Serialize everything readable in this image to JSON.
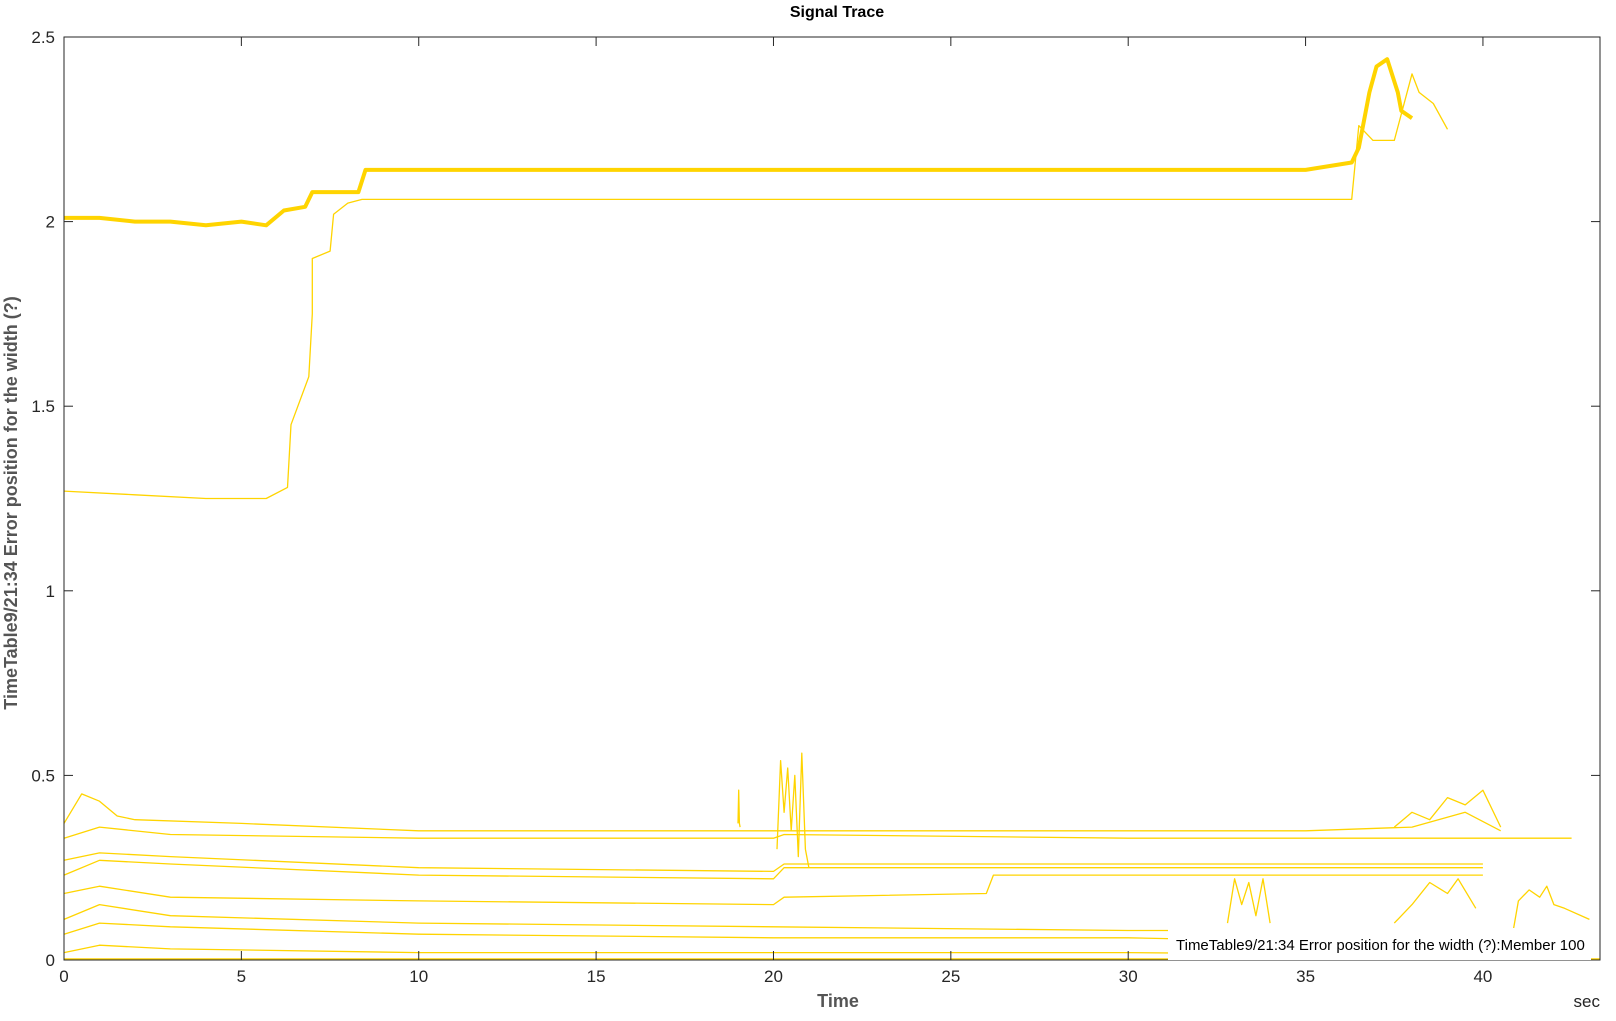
{
  "chart_data": {
    "type": "line",
    "title": "Signal Trace",
    "xlabel": "Time",
    "ylabel": "TimeTable9/21:34 Error position for the width (?)",
    "x_unit_label": "sec",
    "xlim": [
      0,
      43.3
    ],
    "ylim": [
      0,
      2.5
    ],
    "x_ticks": [
      0,
      5,
      10,
      15,
      20,
      25,
      30,
      35,
      40
    ],
    "y_ticks": [
      0,
      0.5,
      1,
      1.5,
      2,
      2.5
    ],
    "x_tick_labels": [
      "0",
      "5",
      "10",
      "15",
      "20",
      "25",
      "30",
      "35",
      "40"
    ],
    "y_tick_labels": [
      "0",
      "0.5",
      "1",
      "1.5",
      "2",
      "2.5"
    ],
    "grid": false,
    "line_color": "#FFD400",
    "annotation": "TimeTable9/21:34 Error position for the width (?):Member 100",
    "series": [
      {
        "highlighted": true,
        "x": [
          0,
          1,
          2,
          3,
          4,
          5,
          5.7,
          6.2,
          6.8,
          7.0,
          7.5,
          8.3,
          8.5,
          10,
          15,
          20,
          25,
          30,
          35,
          36.3,
          36.5,
          36.8,
          37.0,
          37.3,
          37.6,
          37.7,
          38.0
        ],
        "y": [
          2.01,
          2.01,
          2.0,
          2.0,
          1.99,
          2.0,
          1.99,
          2.03,
          2.04,
          2.08,
          2.08,
          2.08,
          2.14,
          2.14,
          2.14,
          2.14,
          2.14,
          2.14,
          2.14,
          2.16,
          2.2,
          2.35,
          2.42,
          2.44,
          2.35,
          2.3,
          2.28
        ]
      },
      {
        "x": [
          0,
          2,
          4,
          5.7,
          6.3,
          6.4,
          6.9,
          7.0,
          7.0,
          7.5,
          7.6,
          8.0,
          8.4,
          8.6,
          10,
          15,
          20,
          25,
          30,
          36.3,
          36.5,
          36.9,
          37.5,
          38.0,
          38.2,
          38.6,
          39.0
        ],
        "y": [
          1.27,
          1.26,
          1.25,
          1.25,
          1.28,
          1.45,
          1.58,
          1.75,
          1.9,
          1.92,
          2.02,
          2.05,
          2.06,
          2.06,
          2.06,
          2.06,
          2.06,
          2.06,
          2.06,
          2.06,
          2.26,
          2.22,
          2.22,
          2.4,
          2.35,
          2.32,
          2.25
        ]
      },
      {
        "x": [
          0,
          0.5,
          1.0,
          1.5,
          2,
          5,
          10,
          15,
          20,
          25,
          30,
          35,
          38,
          39.5,
          40.5
        ],
        "y": [
          0.37,
          0.45,
          0.43,
          0.39,
          0.38,
          0.37,
          0.35,
          0.35,
          0.35,
          0.35,
          0.35,
          0.35,
          0.36,
          0.4,
          0.35
        ]
      },
      {
        "x": [
          0,
          1,
          3,
          10,
          20,
          20.3,
          30,
          42.5
        ],
        "y": [
          0.33,
          0.36,
          0.34,
          0.33,
          0.33,
          0.34,
          0.33,
          0.33
        ]
      },
      {
        "x": [
          0,
          1,
          3,
          10,
          20,
          20.3,
          30,
          40.0
        ],
        "y": [
          0.27,
          0.29,
          0.28,
          0.25,
          0.24,
          0.26,
          0.26,
          0.26
        ]
      },
      {
        "x": [
          0,
          1,
          3,
          10,
          20,
          20.3,
          30,
          40.0
        ],
        "y": [
          0.23,
          0.27,
          0.26,
          0.23,
          0.22,
          0.25,
          0.25,
          0.25
        ]
      },
      {
        "x": [
          0,
          1,
          3,
          10,
          20,
          20.3,
          26.0,
          26.2,
          30,
          40.0
        ],
        "y": [
          0.18,
          0.2,
          0.17,
          0.16,
          0.15,
          0.17,
          0.18,
          0.23,
          0.23,
          0.23
        ]
      },
      {
        "x": [
          0,
          1,
          3,
          10,
          20,
          30,
          35,
          40.0
        ],
        "y": [
          0.11,
          0.15,
          0.12,
          0.1,
          0.09,
          0.08,
          0.08,
          0.08
        ]
      },
      {
        "x": [
          0,
          1,
          3,
          10,
          20,
          30,
          35,
          39.5
        ],
        "y": [
          0.07,
          0.1,
          0.09,
          0.07,
          0.06,
          0.06,
          0.05,
          0.05
        ]
      },
      {
        "x": [
          0,
          1,
          3,
          10,
          20,
          30,
          42.5
        ],
        "y": [
          0.02,
          0.04,
          0.03,
          0.02,
          0.02,
          0.02,
          0.01
        ]
      },
      {
        "x": [
          0,
          10,
          20,
          30,
          43.3
        ],
        "y": [
          0.003,
          0.003,
          0.003,
          0.003,
          0.003
        ]
      },
      {
        "x": [
          20.1,
          20.2,
          20.3,
          20.4,
          20.5,
          20.6,
          20.7,
          20.8,
          20.9,
          21.0
        ],
        "y": [
          0.3,
          0.54,
          0.4,
          0.52,
          0.35,
          0.5,
          0.28,
          0.56,
          0.3,
          0.25
        ]
      },
      {
        "x": [
          32.8,
          33.0,
          33.2,
          33.4,
          33.6,
          33.8,
          34.0
        ],
        "y": [
          0.1,
          0.22,
          0.15,
          0.21,
          0.12,
          0.22,
          0.1
        ]
      },
      {
        "x": [
          37.5,
          38.0,
          38.5,
          39.0,
          39.5,
          40.0,
          40.5
        ],
        "y": [
          0.36,
          0.4,
          0.38,
          0.44,
          0.42,
          0.46,
          0.36
        ]
      },
      {
        "x": [
          37.5,
          38.0,
          38.5,
          39.0,
          39.3,
          39.8
        ],
        "y": [
          0.1,
          0.15,
          0.21,
          0.18,
          0.22,
          0.14
        ]
      },
      {
        "x": [
          40.8,
          41.0,
          41.3,
          41.6,
          41.8,
          42.0,
          42.3,
          43.0
        ],
        "y": [
          0.05,
          0.16,
          0.19,
          0.17,
          0.2,
          0.15,
          0.14,
          0.11
        ]
      },
      {
        "x": [
          19.0,
          19.02,
          19.04,
          19.06
        ],
        "y": [
          0.37,
          0.46,
          0.37,
          0.36
        ]
      }
    ]
  }
}
